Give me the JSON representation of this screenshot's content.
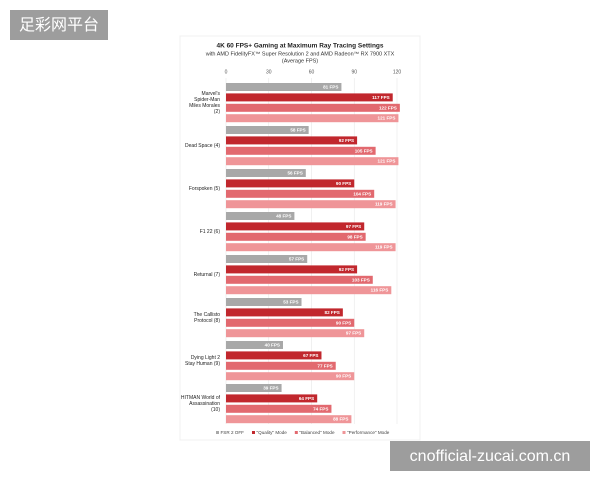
{
  "watermarks": [
    "足彩网平台",
    "cnofficial-zucai.com.cn"
  ],
  "chart_data": {
    "type": "hbar",
    "title": "4K 60 FPS+ Gaming at Maximum Ray Tracing Settings",
    "subtitle": "with AMD FidelityFX™ Super Resolution 2 and AMD Radeon™ RX 7900 XTX",
    "subtitle2": "(Average FPS)",
    "categories": [
      "Marvel's Spider-Man Miles Morales (2)",
      "Dead Space (4)",
      "Forspoken (5)",
      "F1 22 (6)",
      "Returnal (7)",
      "The Callisto Protocol (8)",
      "Dying Light 2 Stay Human (9)",
      "HITMAN World of Assassination (10)"
    ],
    "series": [
      {
        "name": "FSR 2 OFF",
        "color": "#a8a8a8",
        "values": [
          81,
          58,
          56,
          48,
          57,
          53,
          40,
          39
        ],
        "value_labels": [
          "81 FPS",
          "58 FPS",
          "56 FPS",
          "48 FPS",
          "57 FPS",
          "53 FPS",
          "40 FPS",
          "39 FPS"
        ]
      },
      {
        "name": "\"Quality\" Mode",
        "color": "#c1272d",
        "values": [
          117,
          92,
          90,
          97,
          92,
          82,
          67,
          64
        ],
        "value_labels": [
          "117 FPS",
          "92 FPS",
          "90 FPS",
          "97 FPS",
          "92 FPS",
          "82 FPS",
          "67 FPS",
          "64 FPS"
        ]
      },
      {
        "name": "\"Balanced\" Mode",
        "color": "#e2696f",
        "values": [
          122,
          105,
          104,
          98,
          103,
          90,
          77,
          74
        ],
        "value_labels": [
          "122 FPS",
          "105 FPS",
          "104 FPS",
          "98 FPS",
          "103 FPS",
          "90 FPS",
          "77 FPS",
          "74 FPS"
        ]
      },
      {
        "name": "\"Performance\" Mode",
        "color": "#ef9598",
        "values": [
          121,
          121,
          119,
          119,
          116,
          97,
          90,
          88
        ],
        "value_labels": [
          "121 FPS",
          "121 FPS",
          "119 FPS",
          "119 FPS",
          "116 FPS",
          "97 FPS",
          "90 FPS",
          "88 FPS"
        ]
      }
    ],
    "xlim": [
      0,
      120
    ],
    "xticks": [
      0,
      30,
      60,
      90,
      120
    ],
    "grid": true,
    "legend": "bottom"
  }
}
